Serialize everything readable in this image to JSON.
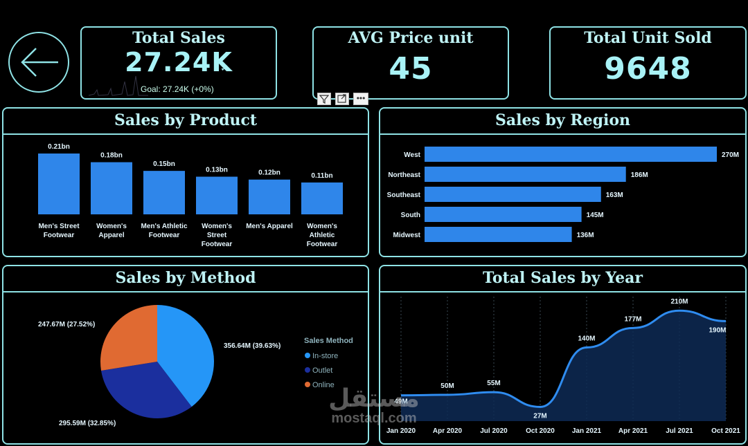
{
  "kpis": {
    "total_sales": {
      "title": "Total Sales",
      "value": "27.24K",
      "goal": "Goal: 27.24K (+0%)"
    },
    "avg_price": {
      "title": "AVG Price unit",
      "value": "45"
    },
    "total_units": {
      "title": "Total Unit Sold",
      "value": "9648"
    }
  },
  "icons": {
    "back": "back-arrow-icon",
    "check": "check-icon",
    "filter": "filter-icon",
    "focus": "focus-mode-icon",
    "more": "more-options-icon"
  },
  "colors": {
    "bar": "#2f86ea",
    "pie_instore": "#2596f7",
    "pie_outlet": "#1b2f9e",
    "pie_online": "#e06a32",
    "accent": "#8fe3e6"
  },
  "panels": {
    "product": {
      "title": "Sales by Product"
    },
    "region": {
      "title": "Sales by Region"
    },
    "method": {
      "title": "Sales by Method",
      "legend_title": "Sales Method"
    },
    "year": {
      "title": "Total Sales by Year"
    }
  },
  "chart_data": [
    {
      "type": "bar",
      "title": "Sales by Product",
      "categories": [
        "Men's Street Footwear",
        "Women's Apparel",
        "Men's Athletic Footwear",
        "Women's Street Footwear",
        "Men's Apparel",
        "Women's Athletic Footwear"
      ],
      "category_lines": [
        [
          "Men's Street",
          "Footwear"
        ],
        [
          "Women's",
          "Apparel"
        ],
        [
          "Men's Athletic",
          "Footwear"
        ],
        [
          "Women's",
          "Street",
          "Footwear"
        ],
        [
          "Men's Apparel"
        ],
        [
          "Women's",
          "Athletic",
          "Footwear"
        ]
      ],
      "values": [
        0.21,
        0.18,
        0.15,
        0.13,
        0.12,
        0.11
      ],
      "data_labels": [
        "0.21bn",
        "0.18bn",
        "0.15bn",
        "0.13bn",
        "0.12bn",
        "0.11bn"
      ],
      "unit": "bn"
    },
    {
      "type": "bar",
      "orientation": "horizontal",
      "title": "Sales by Region",
      "categories": [
        "West",
        "Northeast",
        "Southeast",
        "South",
        "Midwest"
      ],
      "values": [
        270,
        186,
        163,
        145,
        136
      ],
      "data_labels": [
        "270M",
        "186M",
        "163M",
        "145M",
        "136M"
      ],
      "unit": "M"
    },
    {
      "type": "pie",
      "title": "Sales by Method",
      "legend_title": "Sales Method",
      "slices": [
        {
          "label": "In-store",
          "value": 356.64,
          "percent": 39.63,
          "data_label": "356.64M (39.63%)"
        },
        {
          "label": "Outlet",
          "value": 295.59,
          "percent": 32.85,
          "data_label": "295.59M (32.85%)"
        },
        {
          "label": "Online",
          "value": 247.67,
          "percent": 27.52,
          "data_label": "247.67M (27.52%)"
        }
      ]
    },
    {
      "type": "area",
      "title": "Total Sales by Year",
      "x": [
        "Jan 2020",
        "Apr 2020",
        "Jul 2020",
        "Oct 2020",
        "Jan 2021",
        "Apr 2021",
        "Jul 2021",
        "Oct 2021"
      ],
      "values": [
        49,
        50,
        55,
        27,
        140,
        177,
        210,
        190
      ],
      "data_labels": [
        "49M",
        "50M",
        "55M",
        "27M",
        "140M",
        "177M",
        "210M",
        "190M"
      ],
      "unit": "M",
      "ylim": [
        0,
        230
      ]
    }
  ],
  "watermark": {
    "arabic": "مستقل",
    "latin": "mostaql.com"
  }
}
